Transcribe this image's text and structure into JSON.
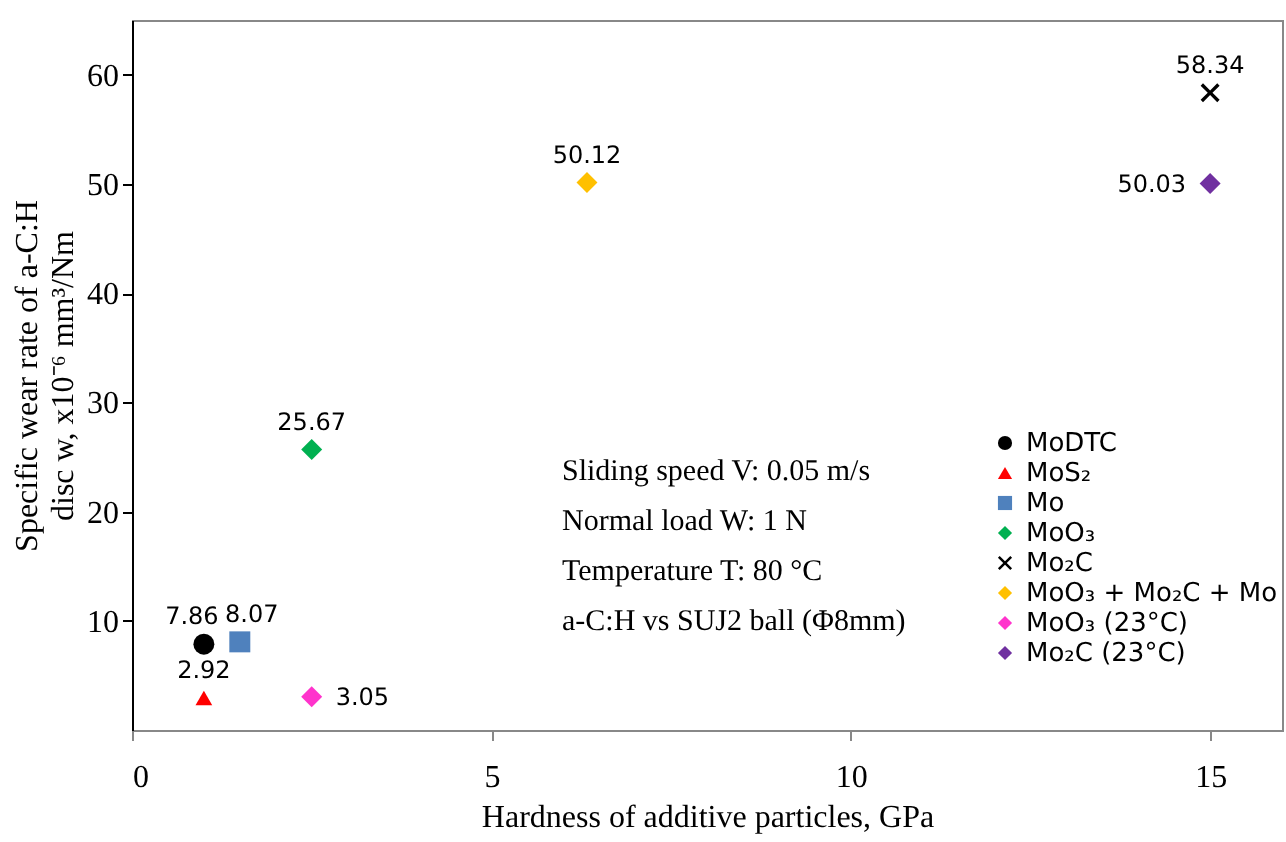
{
  "chart_data": {
    "type": "scatter",
    "xlabel": "Hardness of additive particles, GPa",
    "ylabel": "Specific wear rate of a-C:H\ndisc w, x10⁻⁶ mm³/Nm",
    "xlim": [
      0,
      16
    ],
    "xticks": [
      0,
      5,
      10,
      15
    ],
    "ylim": [
      0,
      65
    ],
    "yticks": [
      10,
      20,
      30,
      40,
      50,
      60
    ],
    "grid": false,
    "legend": "bottom right",
    "data_labels": true,
    "series": [
      {
        "name": "MoDTC",
        "color": "#000000",
        "marker": "circle",
        "x": [
          1.0
        ],
        "values": [
          7.86
        ]
      },
      {
        "name": "MoS₂",
        "color": "#ff0000",
        "marker": "triangle",
        "x": [
          1.0
        ],
        "values": [
          2.92
        ]
      },
      {
        "name": "Mo",
        "color": "#4f81bd",
        "marker": "square",
        "x": [
          1.5
        ],
        "values": [
          8.07
        ]
      },
      {
        "name": "MoO₃",
        "color": "#00b050",
        "marker": "diamond",
        "x": [
          2.5
        ],
        "values": [
          25.67
        ]
      },
      {
        "name": "Mo₂C",
        "color": "#000000",
        "marker": "cross",
        "x": [
          15
        ],
        "values": [
          58.34
        ]
      },
      {
        "name": "MoO₃ + Mo₂C + Mo",
        "color": "#ffc000",
        "marker": "diamond",
        "x": [
          6.33
        ],
        "values": [
          50.12
        ]
      },
      {
        "name": "MoO₃ (23°C)",
        "color": "#ff33cc",
        "marker": "diamond",
        "x": [
          2.5
        ],
        "values": [
          3.05
        ]
      },
      {
        "name": "Mo₂C (23°C)",
        "color": "#7030a0",
        "marker": "diamond",
        "x": [
          15
        ],
        "values": [
          50.03
        ]
      }
    ],
    "annotations": [
      "Sliding speed V: 0.05 m/s",
      "Normal load W: 1 N",
      "Temperature T: 80 °C",
      "a-C:H vs SUJ2 ball (Φ8mm)"
    ]
  }
}
